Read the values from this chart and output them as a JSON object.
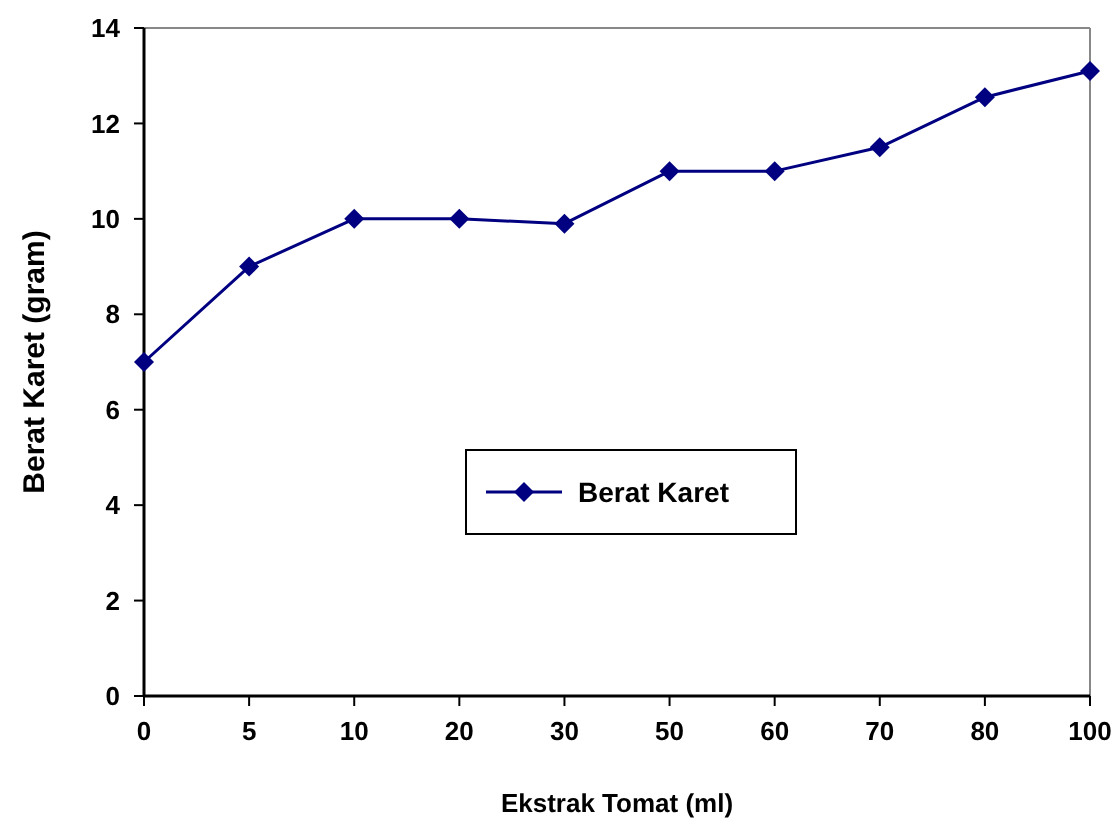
{
  "chart_data": {
    "type": "line",
    "xlabel": "Ekstrak Tomat (ml)",
    "ylabel": "Berat Karet (gram)",
    "categories": [
      "0",
      "5",
      "10",
      "20",
      "30",
      "50",
      "60",
      "70",
      "80",
      "100"
    ],
    "series": [
      {
        "name": "Berat Karet",
        "color": "#000080",
        "values": [
          7,
          9,
          10,
          10,
          9.9,
          11,
          11,
          11.5,
          12.55,
          13.1
        ]
      }
    ],
    "ylim": [
      0,
      14
    ],
    "yticks": [
      0,
      2,
      4,
      6,
      8,
      10,
      12,
      14
    ],
    "grid": false,
    "legend": "center",
    "marker": "diamond",
    "line_style": "solid"
  }
}
